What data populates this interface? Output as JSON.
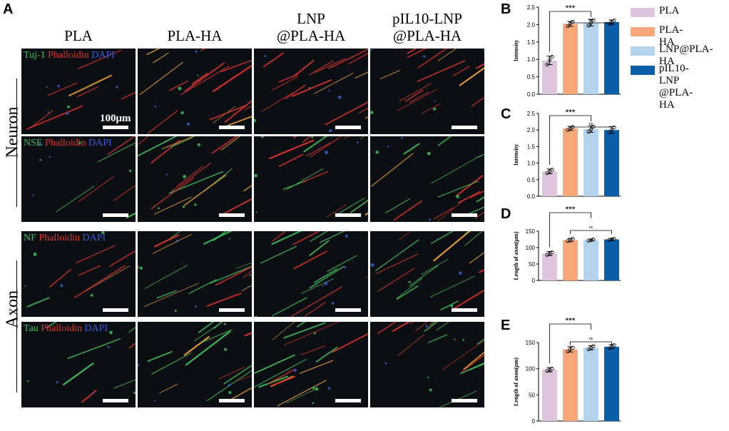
{
  "panel_a": {
    "letter": "A",
    "columns": [
      "PLA",
      "PLA-HA",
      "LNP\n@PLA-HA",
      "pIL10-LNP\n@PLA-HA"
    ],
    "row_groups": [
      "Neuron",
      "Axon"
    ],
    "scale_label": "100μm",
    "stains": [
      {
        "marker": "Tuj-1",
        "phalloidin": "Phalloidin",
        "dapi": "DAPI"
      },
      {
        "marker": "NSE",
        "phalloidin": "Phalloidin",
        "dapi": "DAPI"
      },
      {
        "marker": "NF",
        "phalloidin": "Phalloidin",
        "dapi": "DAPI"
      },
      {
        "marker": "Tau",
        "phalloidin": "Phalloidin",
        "dapi": "DAPI"
      }
    ]
  },
  "legend": {
    "items": [
      {
        "label": "PLA",
        "color": "#dcc5dd"
      },
      {
        "label": "PLA-HA",
        "color": "#f7a77a"
      },
      {
        "label": "LNP@PLA-HA",
        "color": "#b4d3ec"
      },
      {
        "label": "pIL10-LNP\n@PLA-HA",
        "color": "#0c5ea8"
      }
    ]
  },
  "significance": {
    "main": "***",
    "ns": "ns"
  },
  "chart_data": [
    {
      "letter": "B",
      "type": "bar",
      "categories": [
        "PLA",
        "PLA-HA",
        "LNP@PLA-HA",
        "pIL10-LNP@PLA-HA"
      ],
      "values": [
        0.97,
        2.02,
        2.05,
        2.07
      ],
      "errors": [
        0.12,
        0.07,
        0.09,
        0.06
      ],
      "points": [
        [
          0.85,
          0.98,
          1.08
        ],
        [
          1.96,
          2.03,
          2.08
        ],
        [
          1.97,
          2.05,
          2.13
        ],
        [
          2.02,
          2.07,
          2.12
        ]
      ],
      "ylabel": "Intensity",
      "ylim": [
        0,
        2.5
      ],
      "yticks": [
        0.0,
        0.5,
        1.0,
        1.5,
        2.0,
        2.5
      ],
      "ytick_labels": [
        "0.0",
        "0.5",
        "1.0",
        "1.5",
        "2.0",
        "2.5"
      ]
    },
    {
      "letter": "C",
      "type": "bar",
      "categories": [
        "PLA",
        "PLA-HA",
        "LNP@PLA-HA",
        "pIL10-LNP@PLA-HA"
      ],
      "values": [
        0.75,
        2.05,
        2.03,
        2.0
      ],
      "errors": [
        0.07,
        0.06,
        0.1,
        0.1
      ],
      "points": [
        [
          0.7,
          0.75,
          0.8
        ],
        [
          2.0,
          2.05,
          2.09
        ],
        [
          1.95,
          2.02,
          2.1
        ],
        [
          1.93,
          2.0,
          2.08
        ]
      ],
      "ylabel": "Intensity",
      "ylim": [
        0,
        2.5
      ],
      "yticks": [
        0.0,
        0.5,
        1.0,
        1.5,
        2.0,
        2.5
      ],
      "ytick_labels": [
        "0.0",
        "0.5",
        "1.0",
        "1.5",
        "2.0",
        "2.5"
      ]
    },
    {
      "letter": "D",
      "type": "bar",
      "categories": [
        "PLA",
        "PLA-HA",
        "LNP@PLA-HA",
        "pIL10-LNP@PLA-HA"
      ],
      "values": [
        82,
        123,
        123,
        125
      ],
      "errors": [
        6,
        5,
        3,
        3
      ],
      "points": [
        [
          78,
          82,
          86
        ],
        [
          120,
          123,
          127
        ],
        [
          121,
          123,
          125
        ],
        [
          123,
          125,
          127
        ]
      ],
      "ylabel": "Length of axon(μm)",
      "ylim": [
        0,
        150
      ],
      "yticks": [
        0,
        50,
        100,
        150
      ],
      "ytick_labels": [
        "0",
        "50",
        "100",
        "150"
      ]
    },
    {
      "letter": "E",
      "type": "bar",
      "categories": [
        "PLA",
        "PLA-HA",
        "LNP@PLA-HA",
        "pIL10-LNP@PLA-HA"
      ],
      "values": [
        98,
        137,
        140,
        142
      ],
      "errors": [
        4,
        5,
        4,
        4
      ],
      "points": [
        [
          96,
          98,
          100
        ],
        [
          133,
          137,
          140
        ],
        [
          137,
          140,
          143
        ],
        [
          139,
          142,
          145
        ]
      ],
      "ylabel": "Length of axon(μm)",
      "ylim": [
        0,
        150
      ],
      "yticks": [
        0,
        50,
        100,
        150
      ],
      "ytick_labels": [
        "0",
        "50",
        "100",
        "150"
      ]
    }
  ]
}
